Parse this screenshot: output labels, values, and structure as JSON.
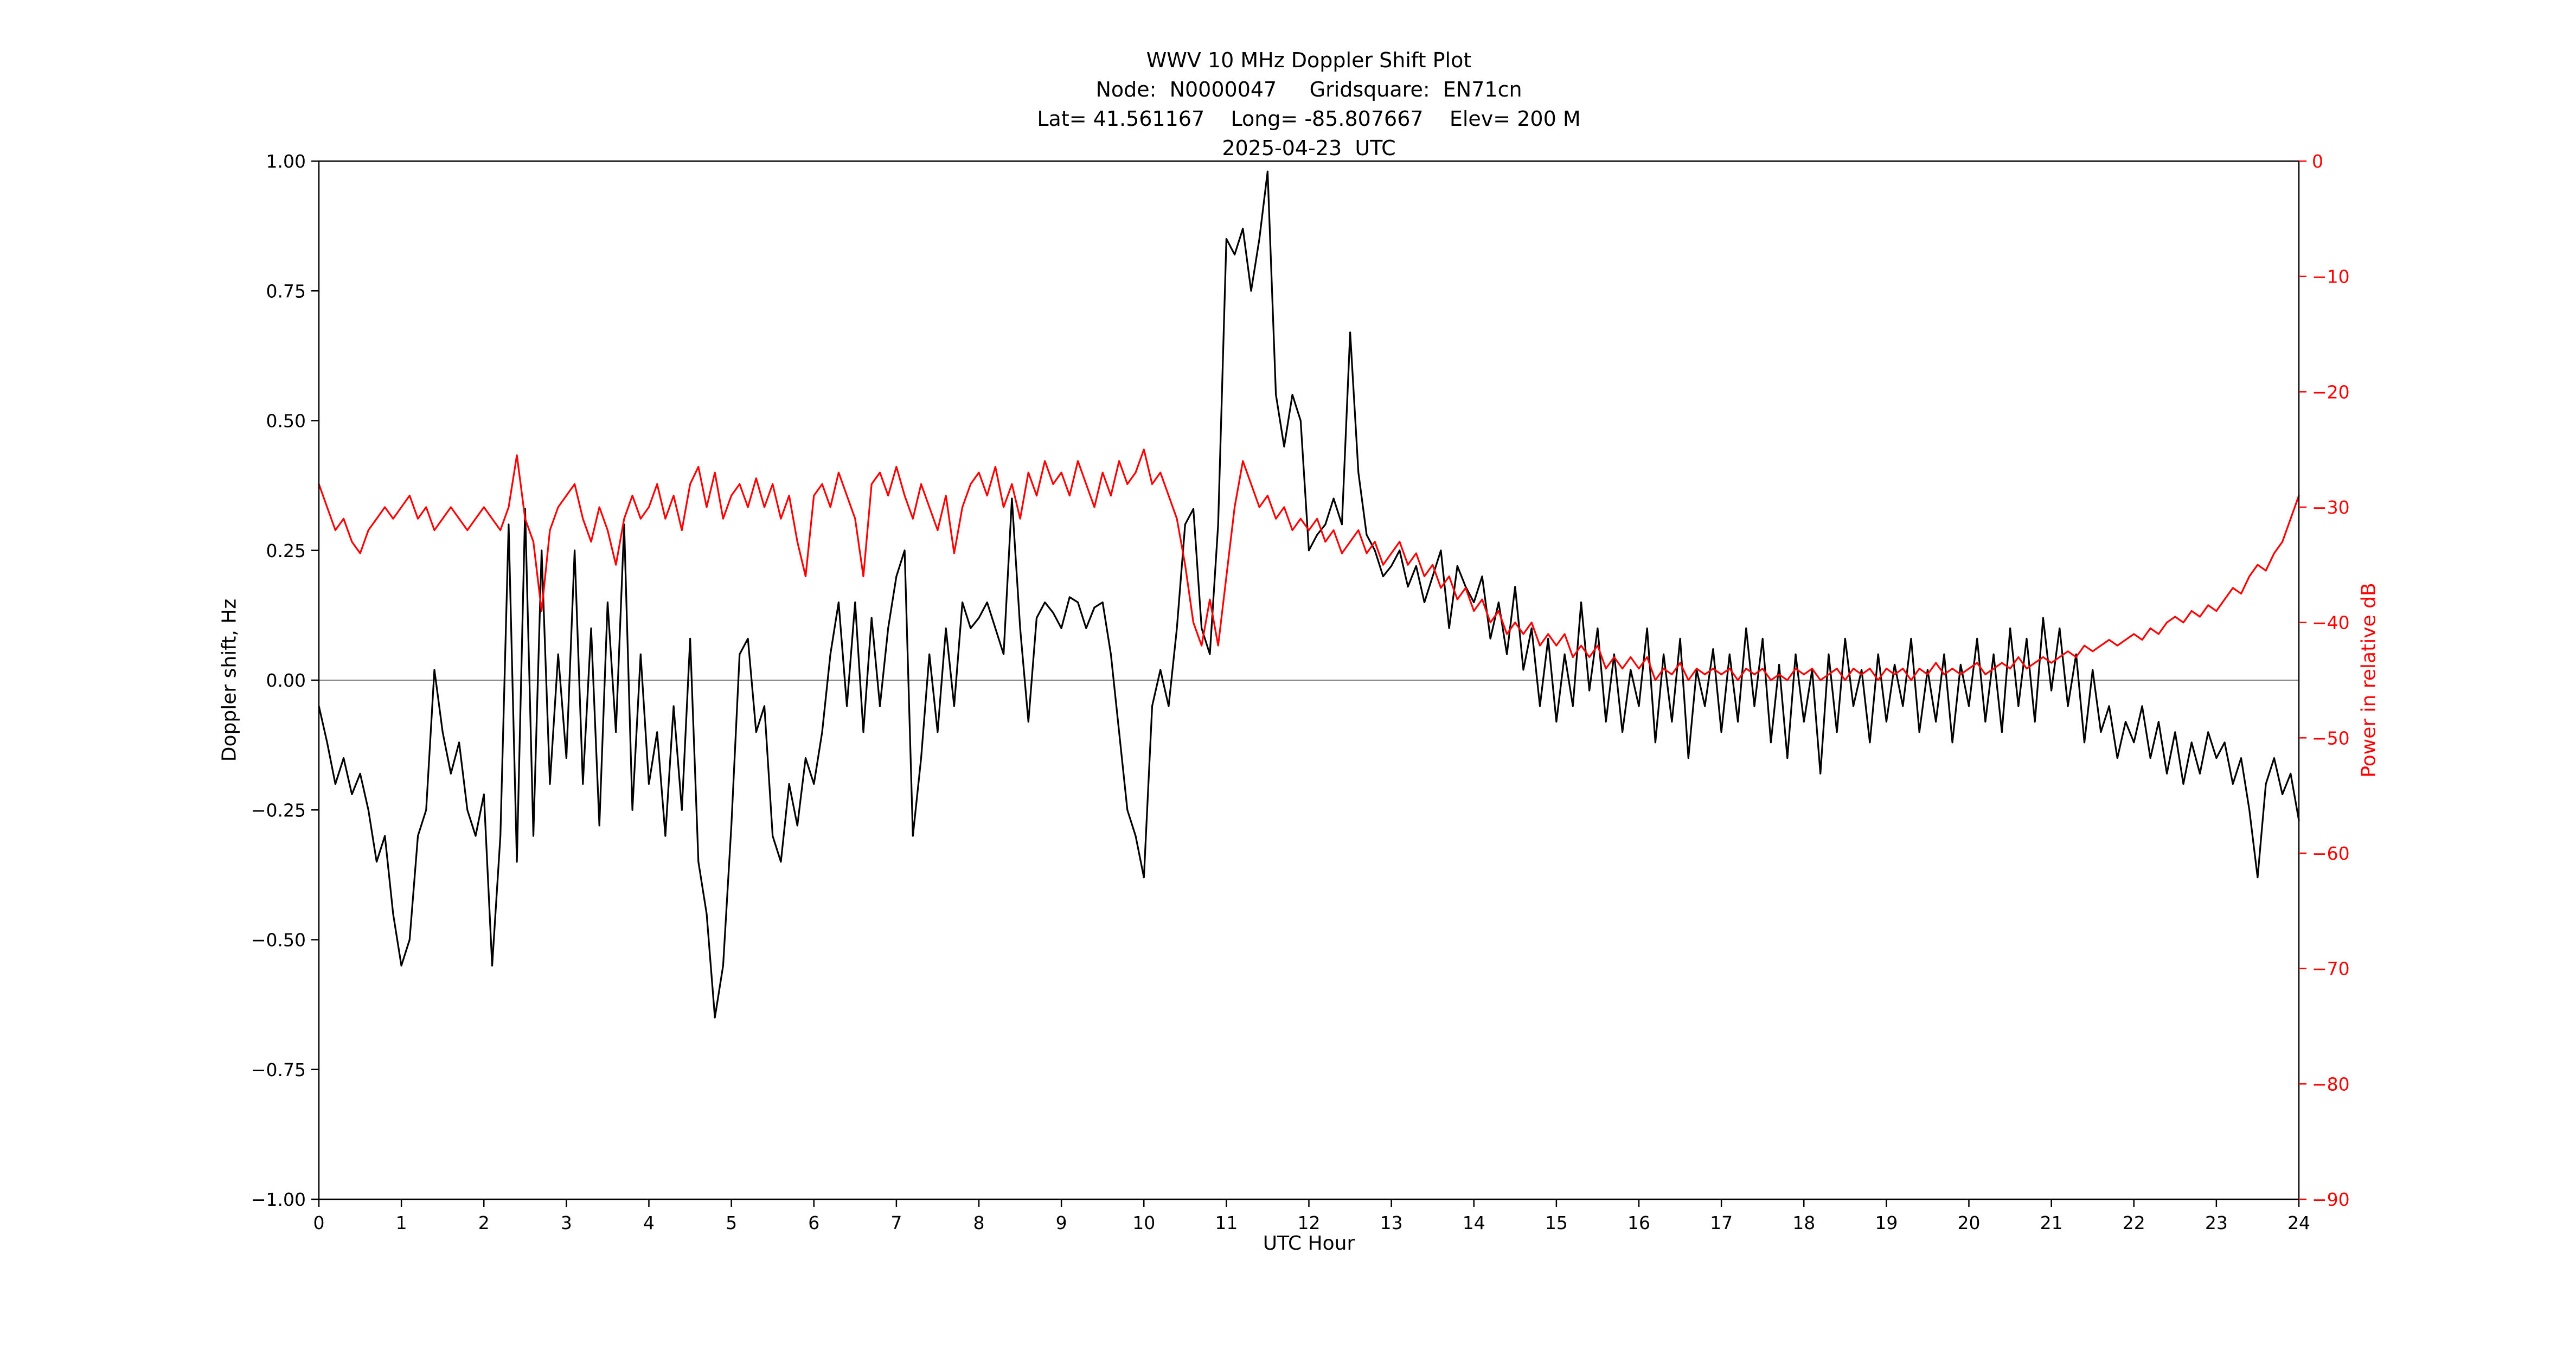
{
  "chart_data": {
    "type": "line",
    "title": "WWV 10 MHz Doppler Shift Plot",
    "subtitle_lines": [
      "Node:  N0000047     Gridsquare:  EN71cn",
      "Lat= 41.561167    Long= -85.807667    Elev= 200 M",
      "2025-04-23  UTC"
    ],
    "xlabel": "UTC Hour",
    "ylabel_left": "Doppler shift, Hz",
    "ylabel_right": "Power in relative dB",
    "xlim": [
      0,
      24
    ],
    "ylim_left": [
      -1,
      1
    ],
    "ylim_right": [
      -90,
      0
    ],
    "grid": false,
    "legend": "none",
    "zero_line": {
      "y": 0,
      "color": "#808080"
    },
    "colors": {
      "doppler": "#000000",
      "power": "#ff0000",
      "frame": "#000000"
    },
    "x_ticks": {
      "values": [
        0,
        1,
        2,
        3,
        4,
        5,
        6,
        7,
        8,
        9,
        10,
        11,
        12,
        13,
        14,
        15,
        16,
        17,
        18,
        19,
        20,
        21,
        22,
        23,
        24
      ],
      "labels": [
        "0",
        "1",
        "2",
        "3",
        "4",
        "5",
        "6",
        "7",
        "8",
        "9",
        "10",
        "11",
        "12",
        "13",
        "14",
        "15",
        "16",
        "17",
        "18",
        "19",
        "20",
        "21",
        "22",
        "23",
        "24"
      ]
    },
    "y_left_ticks": {
      "values": [
        1.0,
        0.75,
        0.5,
        0.25,
        0.0,
        -0.25,
        -0.5,
        -0.75,
        -1.0
      ],
      "labels": [
        "1.00",
        "0.75",
        "0.50",
        "0.25",
        "0.00",
        "−0.25",
        "−0.50",
        "−0.75",
        "−1.00"
      ]
    },
    "y_right_ticks": {
      "values": [
        0,
        -10,
        -20,
        -30,
        -40,
        -50,
        -60,
        -70,
        -80,
        -90
      ],
      "labels": [
        "0",
        "−10",
        "−20",
        "−30",
        "−40",
        "−50",
        "−60",
        "−70",
        "−80",
        "−90"
      ]
    },
    "x_start": 0,
    "x_step": 0.1,
    "series": [
      {
        "name": "Doppler shift, Hz",
        "axis": "left",
        "color": "#000000",
        "values": [
          -0.05,
          -0.12,
          -0.2,
          -0.15,
          -0.22,
          -0.18,
          -0.25,
          -0.35,
          -0.3,
          -0.45,
          -0.55,
          -0.5,
          -0.3,
          -0.25,
          0.02,
          -0.1,
          -0.18,
          -0.12,
          -0.25,
          -0.3,
          -0.22,
          -0.55,
          -0.3,
          0.3,
          -0.35,
          0.33,
          -0.3,
          0.25,
          -0.2,
          0.05,
          -0.15,
          0.25,
          -0.2,
          0.1,
          -0.28,
          0.15,
          -0.1,
          0.3,
          -0.25,
          0.05,
          -0.2,
          -0.1,
          -0.3,
          -0.05,
          -0.25,
          0.08,
          -0.35,
          -0.45,
          -0.65,
          -0.55,
          -0.28,
          0.05,
          0.08,
          -0.1,
          -0.05,
          -0.3,
          -0.35,
          -0.2,
          -0.28,
          -0.15,
          -0.2,
          -0.1,
          0.05,
          0.15,
          -0.05,
          0.15,
          -0.1,
          0.12,
          -0.05,
          0.1,
          0.2,
          0.25,
          -0.3,
          -0.15,
          0.05,
          -0.1,
          0.1,
          -0.05,
          0.15,
          0.1,
          0.12,
          0.15,
          0.1,
          0.05,
          0.35,
          0.1,
          -0.08,
          0.12,
          0.15,
          0.13,
          0.1,
          0.16,
          0.15,
          0.1,
          0.14,
          0.15,
          0.05,
          -0.1,
          -0.25,
          -0.3,
          -0.38,
          -0.05,
          0.02,
          -0.05,
          0.1,
          0.3,
          0.33,
          0.1,
          0.05,
          0.3,
          0.85,
          0.82,
          0.87,
          0.75,
          0.85,
          0.98,
          0.55,
          0.45,
          0.55,
          0.5,
          0.25,
          0.28,
          0.3,
          0.35,
          0.3,
          0.67,
          0.4,
          0.28,
          0.25,
          0.2,
          0.22,
          0.25,
          0.18,
          0.22,
          0.15,
          0.2,
          0.25,
          0.1,
          0.22,
          0.18,
          0.15,
          0.2,
          0.08,
          0.15,
          0.05,
          0.18,
          0.02,
          0.1,
          -0.05,
          0.08,
          -0.08,
          0.05,
          -0.05,
          0.15,
          -0.02,
          0.1,
          -0.08,
          0.05,
          -0.1,
          0.02,
          -0.05,
          0.1,
          -0.12,
          0.05,
          -0.08,
          0.08,
          -0.15,
          0.02,
          -0.05,
          0.06,
          -0.1,
          0.05,
          -0.08,
          0.1,
          -0.05,
          0.08,
          -0.12,
          0.03,
          -0.15,
          0.05,
          -0.08,
          0.02,
          -0.18,
          0.05,
          -0.1,
          0.08,
          -0.05,
          0.02,
          -0.12,
          0.05,
          -0.08,
          0.03,
          -0.05,
          0.08,
          -0.1,
          0.02,
          -0.08,
          0.05,
          -0.12,
          0.03,
          -0.05,
          0.08,
          -0.08,
          0.05,
          -0.1,
          0.1,
          -0.05,
          0.08,
          -0.08,
          0.12,
          -0.02,
          0.1,
          -0.05,
          0.05,
          -0.12,
          0.02,
          -0.1,
          -0.05,
          -0.15,
          -0.08,
          -0.12,
          -0.05,
          -0.15,
          -0.08,
          -0.18,
          -0.1,
          -0.2,
          -0.12,
          -0.18,
          -0.1,
          -0.15,
          -0.12,
          -0.2,
          -0.15,
          -0.25,
          -0.38,
          -0.2,
          -0.15,
          -0.22,
          -0.18,
          -0.27
        ]
      },
      {
        "name": "Power in relative dB",
        "axis": "right",
        "color": "#ff0000",
        "values": [
          -28,
          -30,
          -32,
          -31,
          -33,
          -34,
          -32,
          -31,
          -30,
          -31,
          -30,
          -29,
          -31,
          -30,
          -32,
          -31,
          -30,
          -31,
          -32,
          -31,
          -30,
          -31,
          -32,
          -30,
          -25.5,
          -31,
          -33,
          -39,
          -32,
          -30,
          -29,
          -28,
          -31,
          -33,
          -30,
          -32,
          -35,
          -31,
          -29,
          -31,
          -30,
          -28,
          -31,
          -29,
          -32,
          -28,
          -26.5,
          -30,
          -27,
          -31,
          -29,
          -28,
          -30,
          -27.5,
          -30,
          -28,
          -31,
          -29,
          -33,
          -36,
          -29,
          -28,
          -30,
          -27,
          -29,
          -31,
          -36,
          -28,
          -27,
          -29,
          -26.5,
          -29,
          -31,
          -28,
          -30,
          -32,
          -29,
          -34,
          -30,
          -28,
          -27,
          -29,
          -26.5,
          -30,
          -28,
          -31,
          -27,
          -29,
          -26,
          -28,
          -27,
          -29,
          -26,
          -28,
          -30,
          -27,
          -29,
          -26,
          -28,
          -27,
          -25,
          -28,
          -27,
          -29,
          -31,
          -35,
          -40,
          -42,
          -38,
          -42,
          -36,
          -30,
          -26,
          -28,
          -30,
          -29,
          -31,
          -30,
          -32,
          -31,
          -32,
          -31,
          -33,
          -32,
          -34,
          -33,
          -32,
          -34,
          -33,
          -35,
          -34,
          -33,
          -35,
          -34,
          -36,
          -35,
          -37,
          -36,
          -38,
          -37,
          -39,
          -38,
          -40,
          -39,
          -41,
          -40,
          -41,
          -40,
          -42,
          -41,
          -42,
          -41,
          -43,
          -42,
          -43,
          -42,
          -44,
          -43,
          -44,
          -43,
          -44,
          -43,
          -45,
          -44,
          -44.5,
          -43.5,
          -45,
          -44,
          -44.5,
          -44,
          -44.5,
          -44,
          -45,
          -44,
          -44.5,
          -44,
          -45,
          -44.5,
          -45,
          -44,
          -44.5,
          -44,
          -45,
          -44.5,
          -44,
          -45,
          -44,
          -44.5,
          -44,
          -45,
          -44,
          -44.5,
          -44,
          -45,
          -44,
          -44.5,
          -43.5,
          -44.5,
          -44,
          -44.5,
          -44,
          -43.5,
          -44.5,
          -44,
          -43.5,
          -44,
          -43,
          -44,
          -43.5,
          -43,
          -43.5,
          -43,
          -42.5,
          -43,
          -42,
          -42.5,
          -42,
          -41.5,
          -42,
          -41.5,
          -41,
          -41.5,
          -40.5,
          -41,
          -40,
          -39.5,
          -40,
          -39,
          -39.5,
          -38.5,
          -39,
          -38,
          -37,
          -37.5,
          -36,
          -35,
          -35.5,
          -34,
          -33,
          -31,
          -29
        ]
      }
    ]
  }
}
